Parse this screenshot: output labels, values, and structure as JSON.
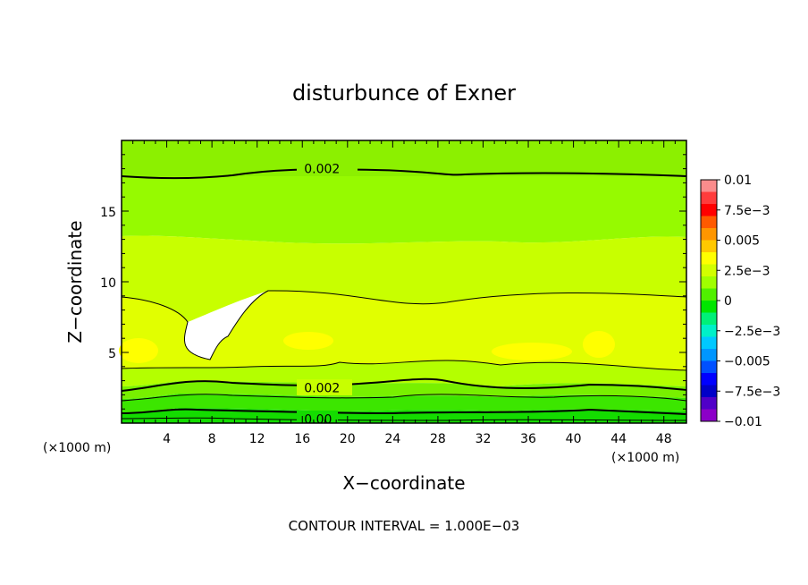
{
  "chart_data": {
    "type": "heatmap",
    "title": "disturbunce of Exner",
    "xlabel": "X−coordinate",
    "ylabel": "Z−coordinate",
    "x_unit": "(×1000 m)",
    "x_unit_right": "(×1000 m)",
    "xlim": [
      0,
      50
    ],
    "ylim": [
      0,
      20
    ],
    "x_ticks": [
      4,
      8,
      12,
      16,
      20,
      24,
      28,
      32,
      36,
      40,
      44,
      48
    ],
    "x_tick_labels": [
      "4",
      "8",
      "12",
      "16",
      "20",
      "24",
      "28",
      "32",
      "36",
      "40",
      "44",
      "48"
    ],
    "y_ticks": [
      5,
      10,
      15
    ],
    "y_tick_labels": [
      "5",
      "10",
      "15"
    ],
    "colorbar": {
      "range": [
        -0.01,
        0.01
      ],
      "tick_values": [
        0.01,
        0.0075,
        0.005,
        0.0025,
        0,
        -0.0025,
        -0.005,
        -0.0075,
        -0.01
      ],
      "tick_labels": [
        "0.01",
        "7.5e−3",
        "0.005",
        "2.5e−3",
        "0",
        "−2.5e−3",
        "−0.005",
        "−7.5e−3",
        "−0.01"
      ],
      "colors_top_to_bottom": [
        "#fa8c8c",
        "#ff3c3c",
        "#ff0000",
        "#ff5a00",
        "#ff9600",
        "#ffc800",
        "#ffff00",
        "#d2ff00",
        "#a0ff00",
        "#50f000",
        "#00e600",
        "#00f078",
        "#00f0c8",
        "#00c8ff",
        "#0096ff",
        "#0050ff",
        "#0000ff",
        "#0000c8",
        "#5000c8",
        "#8c00c8"
      ]
    },
    "contour_labels": [
      {
        "text": "0.002",
        "x": 16,
        "z": 18
      },
      {
        "text": "0.002",
        "x": 16,
        "z": 2.5
      },
      {
        "text": "0.00",
        "x": 16,
        "z": 0.3
      }
    ],
    "field_bands": [
      {
        "z_range": [
          17.5,
          20
        ],
        "value": 0.0015
      },
      {
        "z_range": [
          12.5,
          17.5
        ],
        "value": 0.0018
      },
      {
        "z_range": [
          9,
          12.5
        ],
        "value": 0.0028
      },
      {
        "z_range": [
          3.5,
          9
        ],
        "value": 0.0035
      },
      {
        "z_range": [
          2.5,
          3.5
        ],
        "value": 0.0025
      },
      {
        "z_range": [
          1.5,
          2.5
        ],
        "value": 0.0015
      },
      {
        "z_range": [
          0.5,
          1.5
        ],
        "value": 0.0008
      },
      {
        "z_range": [
          0,
          0.5
        ],
        "value": 0.0002
      }
    ],
    "contour_interval_note": "CONTOUR INTERVAL = 1.000E−03"
  }
}
